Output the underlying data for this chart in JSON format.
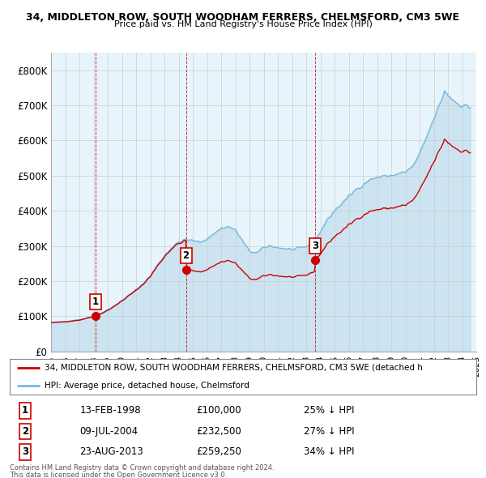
{
  "title_line1": "34, MIDDLETON ROW, SOUTH WOODHAM FERRERS, CHELMSFORD, CM3 5WE",
  "title_line2": "Price paid vs. HM Land Registry's House Price Index (HPI)",
  "hpi_color": "#7ab8d9",
  "hpi_fill_color": "#ddeef7",
  "sale_color": "#cc0000",
  "legend_label_sale": "34, MIDDLETON ROW, SOUTH WOODHAM FERRERS, CHELMSFORD, CM3 5WE (detached h",
  "legend_label_hpi": "HPI: Average price, detached house, Chelmsford",
  "sale_years": [
    1998.12,
    2004.52,
    2013.65
  ],
  "sale_prices": [
    100000,
    232500,
    259250
  ],
  "sale_labels": [
    "1",
    "2",
    "3"
  ],
  "table_data": [
    [
      "1",
      "13-FEB-1998",
      "£100,000",
      "25% ↓ HPI"
    ],
    [
      "2",
      "09-JUL-2004",
      "£232,500",
      "27% ↓ HPI"
    ],
    [
      "3",
      "23-AUG-2013",
      "£259,250",
      "34% ↓ HPI"
    ]
  ],
  "footnote1": "Contains HM Land Registry data © Crown copyright and database right 2024.",
  "footnote2": "This data is licensed under the Open Government Licence v3.0.",
  "ylim": [
    0,
    850000
  ],
  "yticks": [
    0,
    100000,
    200000,
    300000,
    400000,
    500000,
    600000,
    700000,
    800000
  ],
  "ytick_labels": [
    "£0",
    "£100K",
    "£200K",
    "£300K",
    "£400K",
    "£500K",
    "£600K",
    "£700K",
    "£800K"
  ],
  "xlim": [
    1995.0,
    2025.0
  ],
  "bg_color": "#ffffff",
  "grid_color": "#cccccc",
  "chart_bg": "#e8f4fb"
}
